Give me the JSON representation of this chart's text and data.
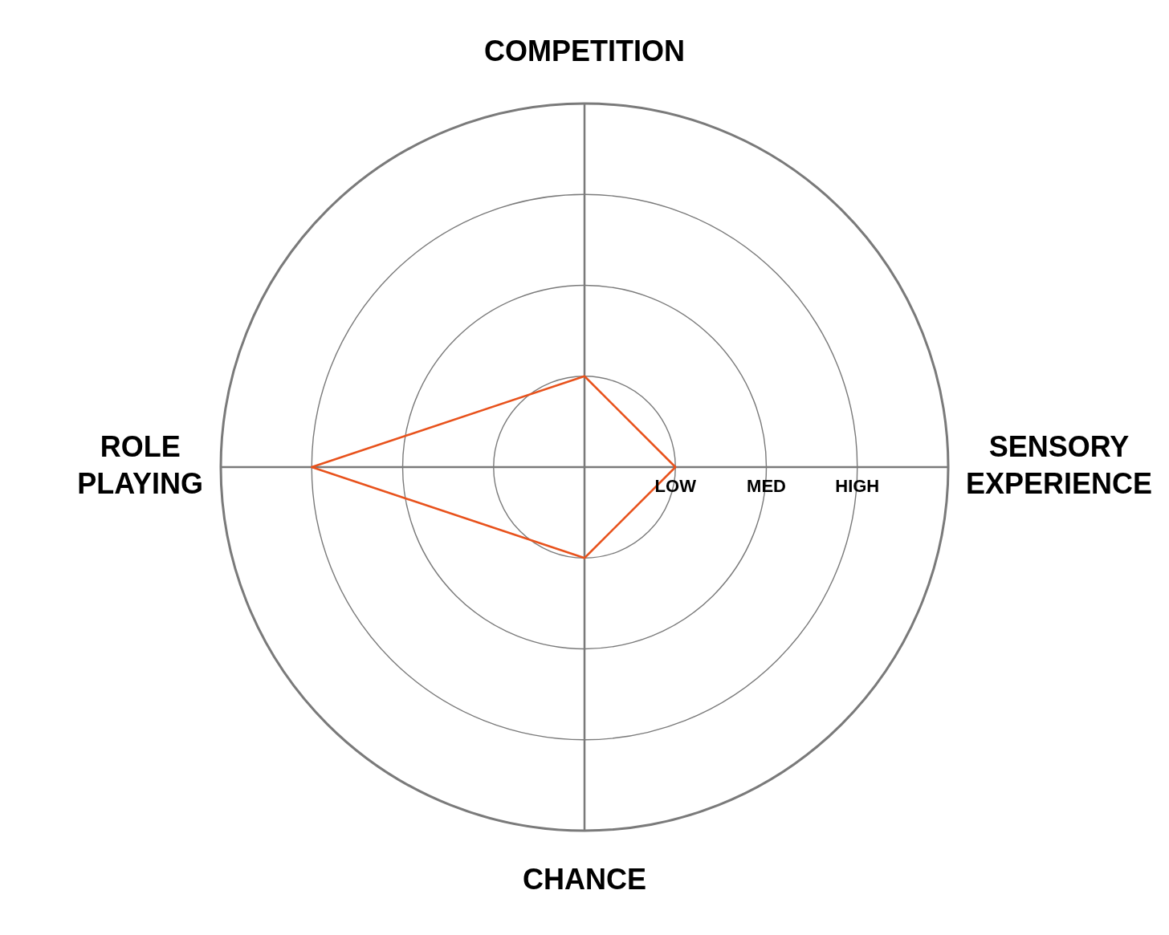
{
  "chart_data": {
    "type": "radar",
    "categories": [
      "COMPETITION",
      "SENSORY EXPERIENCE",
      "CHANCE",
      "ROLE PLAYING"
    ],
    "series": [
      {
        "color": "#e8521c",
        "values": [
          1,
          1,
          1,
          3
        ]
      }
    ],
    "ylim": [
      0,
      4
    ],
    "yticks": [
      {
        "value": 1,
        "label": "LOW"
      },
      {
        "value": 2,
        "label": "MED"
      },
      {
        "value": 3,
        "label": "HIGH"
      }
    ],
    "grid": true,
    "marker": "none",
    "line_style": "solid"
  }
}
